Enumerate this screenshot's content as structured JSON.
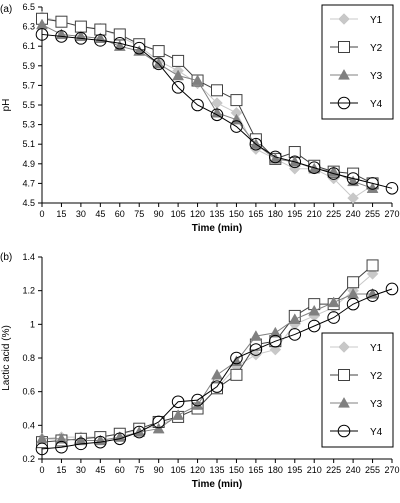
{
  "chart_data": [
    {
      "panel_label": "(a)",
      "type": "line",
      "xlabel": "Time (min)",
      "ylabel": "pH",
      "xlim": [
        0,
        270
      ],
      "ylim": [
        4.5,
        6.5
      ],
      "x_ticks": [
        "0",
        "15",
        "30",
        "45",
        "60",
        "75",
        "90",
        "105",
        "120",
        "135",
        "150",
        "165",
        "180",
        "195",
        "210",
        "225",
        "240",
        "255",
        "270"
      ],
      "y_ticks": [
        "4.5",
        "4.7",
        "4.9",
        "5.1",
        "5.3",
        "5.5",
        "5.7",
        "5.9",
        "6.1",
        "6.3",
        "6.5"
      ],
      "grid": false,
      "legend_position": "top-right",
      "series": [
        {
          "name": "Y1",
          "marker": "diamond",
          "color": "#c8c8c8",
          "x": [
            0,
            15,
            30,
            45,
            60,
            75,
            90,
            105,
            120,
            135,
            150,
            165,
            180,
            195,
            210,
            225,
            240,
            255
          ],
          "y": [
            6.4,
            6.35,
            6.3,
            6.28,
            6.2,
            6.1,
            5.95,
            5.85,
            5.72,
            5.52,
            5.42,
            5.05,
            4.95,
            4.85,
            4.85,
            4.75,
            4.55,
            4.68
          ]
        },
        {
          "name": "Y2",
          "marker": "square",
          "color": "#404040",
          "x": [
            0,
            15,
            30,
            45,
            60,
            75,
            90,
            105,
            120,
            135,
            150,
            165,
            180,
            195,
            210,
            225,
            240,
            255
          ],
          "y": [
            6.38,
            6.35,
            6.3,
            6.27,
            6.22,
            6.12,
            6.05,
            5.95,
            5.75,
            5.65,
            5.55,
            5.15,
            4.95,
            5.02,
            4.88,
            4.82,
            4.8,
            4.7
          ]
        },
        {
          "name": "Y3",
          "marker": "triangle",
          "color": "#808080",
          "x": [
            0,
            15,
            30,
            45,
            60,
            75,
            90,
            105,
            120,
            135,
            150,
            165,
            180,
            195,
            210,
            225,
            240,
            255
          ],
          "y": [
            6.32,
            6.22,
            6.2,
            6.18,
            6.1,
            6.05,
            5.92,
            5.8,
            5.75,
            5.42,
            5.35,
            5.1,
            4.95,
            4.92,
            4.85,
            4.82,
            4.72,
            4.65
          ]
        },
        {
          "name": "Y4",
          "marker": "circle",
          "color": "#000000",
          "x": [
            0,
            15,
            30,
            45,
            60,
            75,
            90,
            105,
            120,
            135,
            150,
            165,
            180,
            195,
            210,
            225,
            240,
            255,
            270
          ],
          "y": [
            6.22,
            6.2,
            6.18,
            6.16,
            6.13,
            6.08,
            5.92,
            5.68,
            5.5,
            5.4,
            5.28,
            5.1,
            4.97,
            4.92,
            4.86,
            4.8,
            4.75,
            4.7,
            4.65
          ]
        }
      ],
      "legend": [
        "Y1",
        "Y2",
        "Y3",
        "Y4"
      ]
    },
    {
      "panel_label": "(b)",
      "type": "line",
      "xlabel": "Time (min)",
      "ylabel": "Lactic acid (%)",
      "xlim": [
        0,
        270
      ],
      "ylim": [
        0.2,
        1.4
      ],
      "x_ticks": [
        "0",
        "15",
        "30",
        "45",
        "60",
        "75",
        "90",
        "105",
        "120",
        "135",
        "150",
        "165",
        "180",
        "195",
        "210",
        "225",
        "240",
        "255",
        "270"
      ],
      "y_ticks": [
        "0.2",
        "0.4",
        "0.6",
        "0.8",
        "1",
        "1.2",
        "1.4"
      ],
      "grid": false,
      "legend_position": "bottom-right",
      "series": [
        {
          "name": "Y1",
          "marker": "diamond",
          "color": "#c8c8c8",
          "x": [
            0,
            15,
            30,
            45,
            60,
            75,
            90,
            105,
            120,
            135,
            150,
            165,
            180,
            195,
            210,
            225,
            240,
            255
          ],
          "y": [
            0.32,
            0.33,
            0.33,
            0.33,
            0.35,
            0.37,
            0.4,
            0.45,
            0.5,
            0.62,
            0.75,
            0.82,
            0.85,
            1.0,
            1.05,
            1.1,
            1.2,
            1.3
          ]
        },
        {
          "name": "Y2",
          "marker": "square",
          "color": "#404040",
          "x": [
            0,
            15,
            30,
            45,
            60,
            75,
            90,
            105,
            120,
            135,
            150,
            165,
            180,
            195,
            210,
            225,
            240,
            255
          ],
          "y": [
            0.3,
            0.31,
            0.32,
            0.33,
            0.35,
            0.38,
            0.42,
            0.45,
            0.5,
            0.62,
            0.7,
            0.88,
            0.9,
            1.05,
            1.12,
            1.12,
            1.25,
            1.35
          ]
        },
        {
          "name": "Y3",
          "marker": "triangle",
          "color": "#808080",
          "x": [
            0,
            15,
            30,
            45,
            60,
            75,
            90,
            105,
            120,
            135,
            150,
            165,
            180,
            195,
            210,
            225,
            240,
            255
          ],
          "y": [
            0.32,
            0.32,
            0.31,
            0.31,
            0.33,
            0.36,
            0.38,
            0.46,
            0.52,
            0.7,
            0.78,
            0.93,
            0.95,
            1.03,
            1.08,
            1.13,
            1.18,
            1.18
          ]
        },
        {
          "name": "Y4",
          "marker": "circle",
          "color": "#000000",
          "x": [
            0,
            15,
            30,
            45,
            60,
            75,
            90,
            105,
            120,
            135,
            150,
            165,
            180,
            195,
            210,
            225,
            240,
            255,
            270
          ],
          "y": [
            0.26,
            0.27,
            0.29,
            0.3,
            0.32,
            0.36,
            0.42,
            0.54,
            0.55,
            0.63,
            0.8,
            0.85,
            0.9,
            0.94,
            0.99,
            1.04,
            1.12,
            1.17,
            1.21
          ]
        }
      ],
      "legend": [
        "Y1",
        "Y2",
        "Y3",
        "Y4"
      ]
    }
  ]
}
